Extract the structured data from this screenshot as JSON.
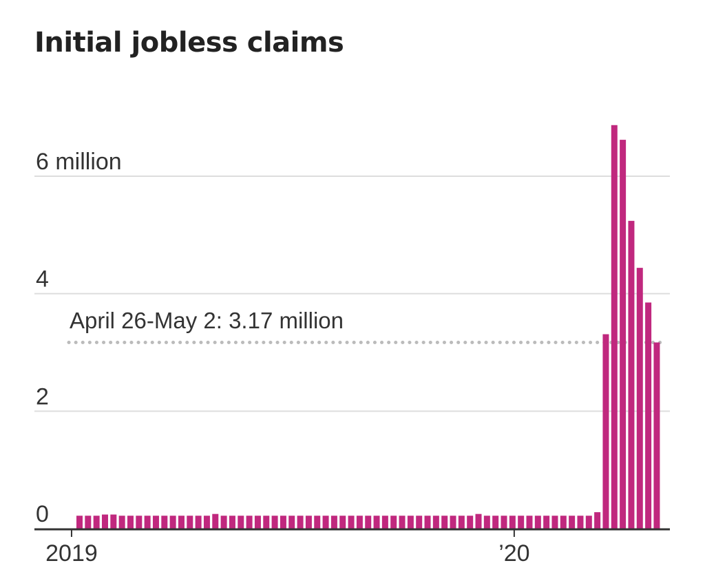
{
  "chart_data": {
    "type": "bar",
    "title": "Initial jobless claims",
    "xlabel": "",
    "ylabel": "",
    "unit": "million",
    "ylim": [
      0,
      6.8
    ],
    "y_ticks": [
      {
        "value": 0,
        "label": "0"
      },
      {
        "value": 2,
        "label": "2"
      },
      {
        "value": 4,
        "label": "4"
      },
      {
        "value": 6,
        "label": "6 million"
      }
    ],
    "x_ticks": [
      {
        "date": "2019-01-01",
        "label": "2019"
      },
      {
        "date": "2020-01-01",
        "label": "’20"
      }
    ],
    "grid": true,
    "legend": "none",
    "bar_color": "#c0287e",
    "reference_line": {
      "value": 3.17,
      "label": "April 26-May 2: 3.17 million",
      "style": "dotted",
      "color": "#bbbbbb"
    },
    "series": [
      {
        "week_start": "2019-01-05",
        "week_interval_days": 7,
        "values": [
          0.22,
          0.22,
          0.22,
          0.24,
          0.24,
          0.22,
          0.22,
          0.22,
          0.22,
          0.22,
          0.22,
          0.22,
          0.22,
          0.22,
          0.22,
          0.22,
          0.25,
          0.22,
          0.22,
          0.22,
          0.22,
          0.22,
          0.22,
          0.22,
          0.22,
          0.22,
          0.22,
          0.22,
          0.22,
          0.22,
          0.22,
          0.22,
          0.22,
          0.22,
          0.22,
          0.22,
          0.22,
          0.22,
          0.22,
          0.22,
          0.22,
          0.22,
          0.22,
          0.22,
          0.22,
          0.22,
          0.22,
          0.25,
          0.22,
          0.22,
          0.22,
          0.22,
          0.22,
          0.22,
          0.22,
          0.22,
          0.22,
          0.22,
          0.22,
          0.22,
          0.22,
          0.28,
          3.31,
          6.87,
          6.62,
          5.24,
          4.44,
          3.85,
          3.17
        ]
      }
    ]
  }
}
